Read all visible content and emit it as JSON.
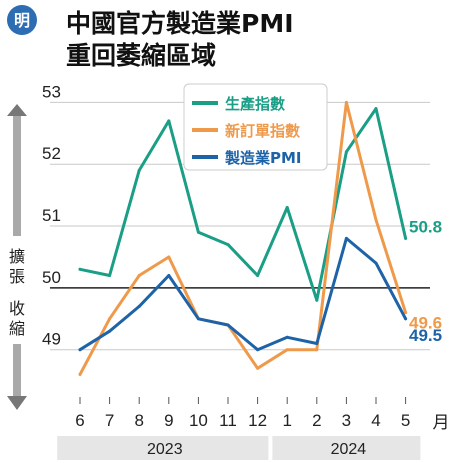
{
  "badge": {
    "label": "明"
  },
  "title": {
    "line1": "中國官方製造業PMI",
    "line2": "重回萎縮區域"
  },
  "side_labels": {
    "top": [
      "擴",
      "張"
    ],
    "bottom": [
      "收",
      "縮"
    ]
  },
  "colors": {
    "series_0": "#1a9e86",
    "series_1": "#ef9a4a",
    "series_2": "#1e63a8",
    "badge": "#2c6db3"
  },
  "chart_data": {
    "type": "line",
    "categories": [
      "6",
      "7",
      "8",
      "9",
      "10",
      "11",
      "12",
      "1",
      "2",
      "3",
      "4",
      "5"
    ],
    "x_unit": "月",
    "year_groups": [
      {
        "label": "2023",
        "from": 0,
        "to": 6
      },
      {
        "label": "2024",
        "from": 7,
        "to": 11
      }
    ],
    "ylim": [
      48.3,
      53.2
    ],
    "yticks": [
      49,
      50,
      51,
      52,
      53
    ],
    "reference_line": 50,
    "grid": "horizontal",
    "legend_position": "top-center",
    "series": [
      {
        "name": "生產指數",
        "values": [
          50.3,
          50.2,
          51.9,
          52.7,
          50.9,
          50.7,
          50.2,
          51.3,
          49.8,
          52.2,
          52.9,
          50.8
        ],
        "end_label": "50.8"
      },
      {
        "name": "新訂單指數",
        "values": [
          48.6,
          49.5,
          50.2,
          50.5,
          49.5,
          49.4,
          48.7,
          49.0,
          49.0,
          53.0,
          51.1,
          49.6
        ],
        "end_label": "49.6"
      },
      {
        "name": "製造業PMI",
        "values": [
          49.0,
          49.3,
          49.7,
          50.2,
          49.5,
          49.4,
          49.0,
          49.2,
          49.1,
          50.8,
          50.4,
          49.5
        ],
        "end_label": "49.5"
      }
    ]
  }
}
